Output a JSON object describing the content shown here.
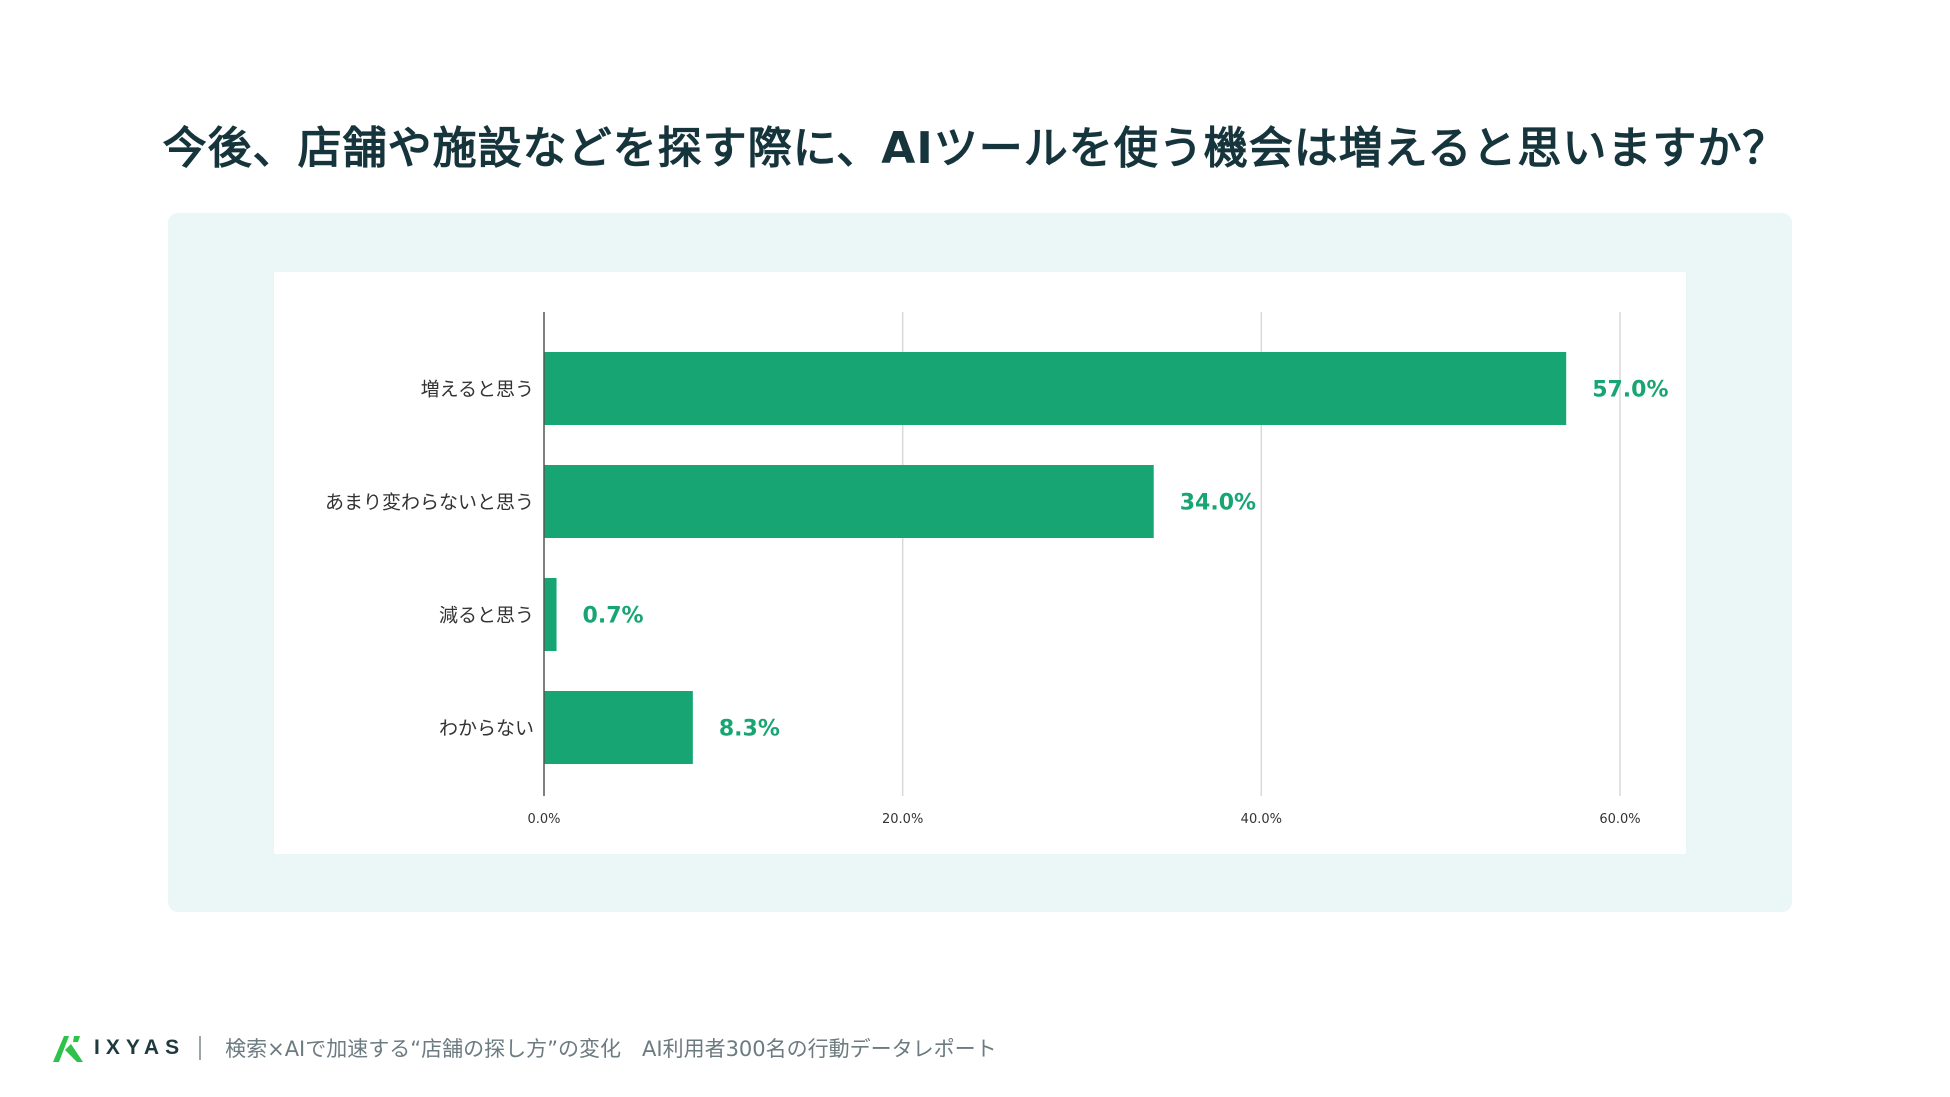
{
  "title": "今後、店舗や施設などを探す際に、AIツールを使う機会は増えると思いますか？",
  "chart_data": {
    "type": "bar",
    "orientation": "horizontal",
    "title": "今後、店舗や施設などを探す際に、AIツールを使う機会は増えると思いますか？",
    "categories": [
      "増えると思う",
      "あまり変わらないと思う",
      "減ると思う",
      "わからない"
    ],
    "values": [
      57.0,
      34.0,
      0.7,
      8.3
    ],
    "value_labels": [
      "57.0%",
      "34.0%",
      "0.7%",
      "8.3%"
    ],
    "xlim": [
      0,
      60
    ],
    "xticks": [
      0,
      20,
      40,
      60
    ],
    "xtick_labels": [
      "0.0%",
      "20.0%",
      "40.0%",
      "60.0%"
    ],
    "xlabel": "",
    "ylabel": "",
    "grid": true,
    "bar_color": "#17a673"
  },
  "footer": {
    "logo_text": "IXYAS",
    "report_title": "検索×AIで加速する“店舗の探し方”の変化　AI利用者300名の行動データレポート"
  },
  "colors": {
    "title": "#16343b",
    "panel": "#ebf7f6",
    "bar": "#17a673",
    "grid": "#d9d9d9",
    "logo_green": "#2ec24a"
  }
}
